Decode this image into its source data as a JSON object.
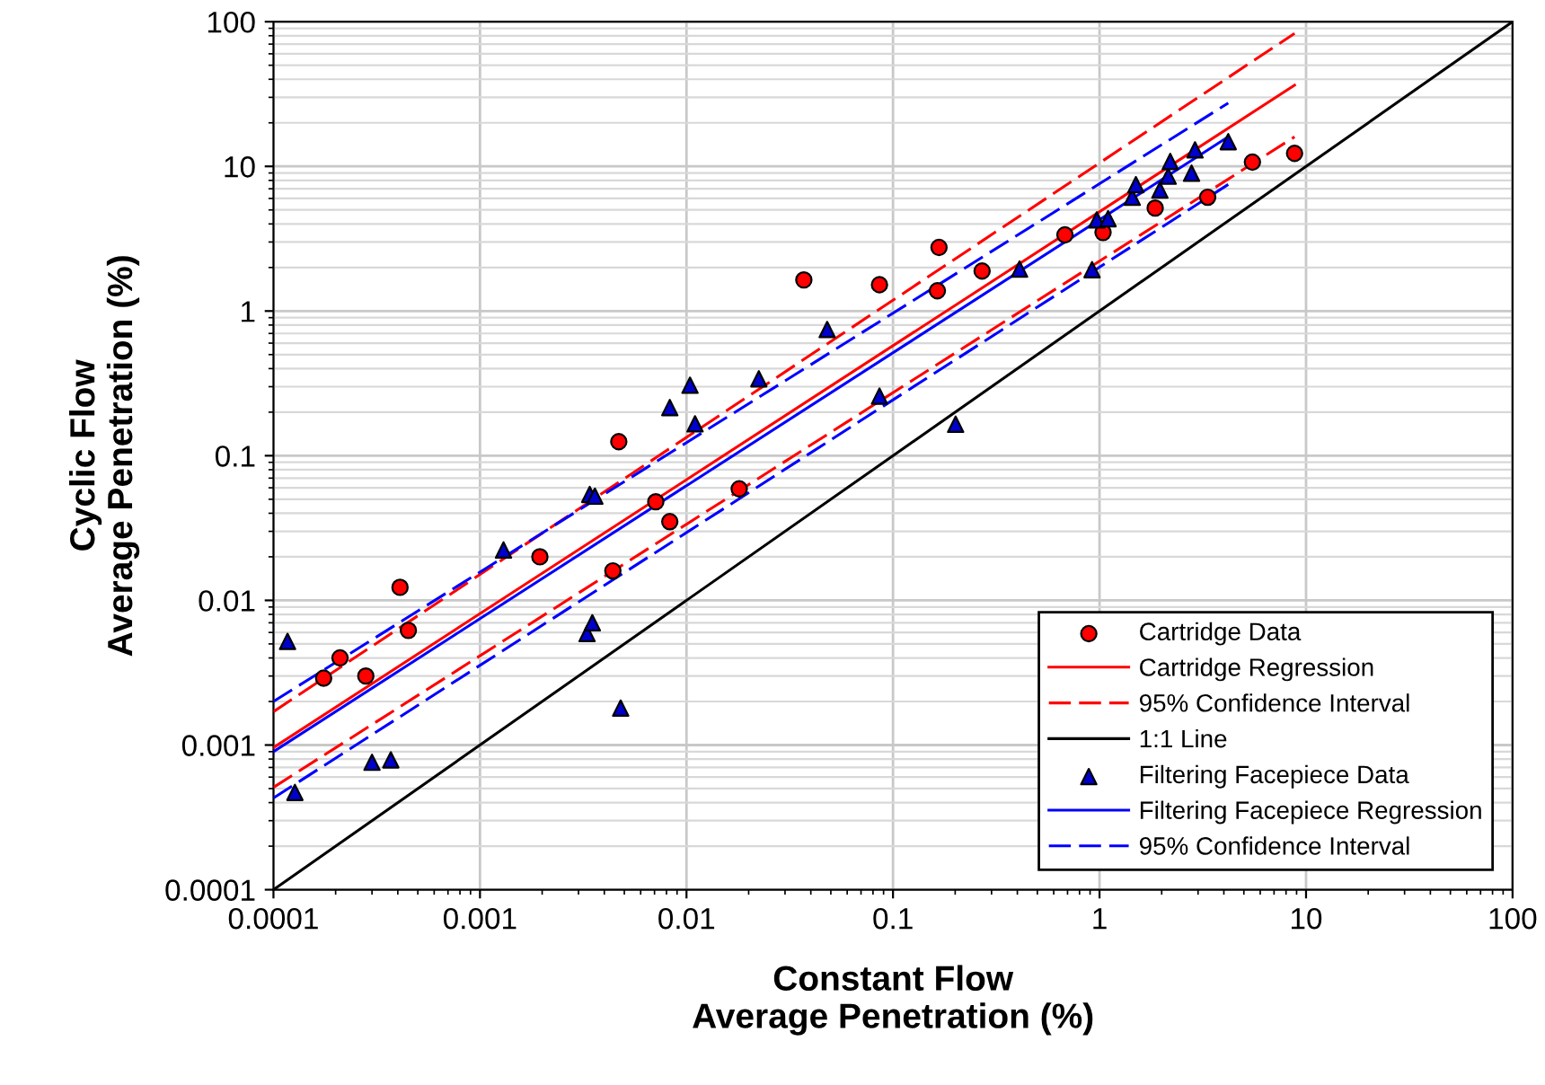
{
  "chart_data": {
    "type": "scatter",
    "xlabel": "Constant Flow\nAverage Penetration (%)",
    "ylabel": "Cyclic Flow\nAverage Penetration (%)",
    "log": "xy",
    "xlim": [
      0.0001,
      100
    ],
    "ylim": [
      0.0001,
      100
    ],
    "xticks": [
      0.0001,
      0.001,
      0.01,
      0.1,
      1,
      10,
      100
    ],
    "yticks": [
      0.0001,
      0.001,
      0.01,
      0.1,
      1,
      10,
      100
    ],
    "grid": true,
    "legend": "bottom right",
    "series": [
      {
        "name": "Cartridge Data",
        "marker": "circle",
        "color": "#ff0000",
        "x": [
          0.000175,
          0.00021,
          0.00028,
          0.00041,
          0.00045,
          0.00195,
          0.0044,
          0.0047,
          0.0071,
          0.0083,
          0.018,
          0.037,
          0.086,
          0.164,
          0.167,
          0.27,
          0.68,
          1.04,
          1.86,
          3.34,
          5.5,
          8.8
        ],
        "values": [
          0.0029,
          0.004,
          0.003,
          0.0123,
          0.0062,
          0.02,
          0.016,
          0.125,
          0.048,
          0.035,
          0.059,
          1.64,
          1.52,
          1.38,
          2.75,
          1.89,
          3.36,
          3.49,
          5.15,
          6.12,
          10.7,
          12.3
        ]
      },
      {
        "name": "Cartridge Regression",
        "type": "line",
        "line_style": "solid",
        "color": "#ff0000",
        "x": [
          0.0001,
          8.8
        ],
        "values": [
          0.00096,
          36.4
        ]
      },
      {
        "name": "95% Confidence Interval",
        "type": "line",
        "line_style": "dashed",
        "color": "#ff0000",
        "x": [
          0.0001,
          8.8
        ],
        "values": [
          0.0017,
          83
        ]
      },
      {
        "type": "line",
        "line_style": "dashed",
        "color": "#ff0000",
        "x": [
          0.0001,
          8.8
        ],
        "values": [
          0.00051,
          16.0
        ]
      },
      {
        "name": "1:1 Line",
        "type": "line",
        "line_style": "solid",
        "color": "#000000",
        "x": [
          0.0001,
          100
        ],
        "values": [
          0.0001,
          100
        ]
      },
      {
        "name": "Filtering Facepiece Data",
        "marker": "triangle",
        "color": "#0000cc",
        "x": [
          0.000117,
          0.000127,
          0.0003,
          0.00037,
          0.0013,
          0.0033,
          0.0034,
          0.0035,
          0.0036,
          0.0048,
          0.0083,
          0.0104,
          0.011,
          0.0224,
          0.048,
          0.086,
          0.201,
          0.41,
          0.92,
          0.97,
          1.1,
          1.44,
          1.5,
          1.96,
          2.15,
          2.2,
          2.79,
          2.9,
          4.2
        ],
        "values": [
          0.0052,
          0.00047,
          0.00076,
          0.00079,
          0.0223,
          0.0059,
          0.054,
          0.007,
          0.0525,
          0.0018,
          0.215,
          0.307,
          0.166,
          0.34,
          0.745,
          0.258,
          0.165,
          1.95,
          1.93,
          4.26,
          4.35,
          6.12,
          7.47,
          6.86,
          8.55,
          10.8,
          8.97,
          13,
          14.8
        ]
      },
      {
        "name": "Filtering Facepiece Regression",
        "type": "line",
        "line_style": "solid",
        "color": "#0000ff",
        "x": [
          0.0001,
          4.2
        ],
        "values": [
          0.0009,
          16.0
        ]
      },
      {
        "name": "95% Confidence Interval",
        "type": "line",
        "line_style": "dashed",
        "color": "#0000ff",
        "x": [
          0.0001,
          4.2
        ],
        "values": [
          0.002,
          27.4
        ]
      },
      {
        "type": "line",
        "line_style": "dashed",
        "color": "#0000ff",
        "x": [
          0.0001,
          4.2
        ],
        "values": [
          0.00043,
          7.5
        ]
      }
    ]
  }
}
